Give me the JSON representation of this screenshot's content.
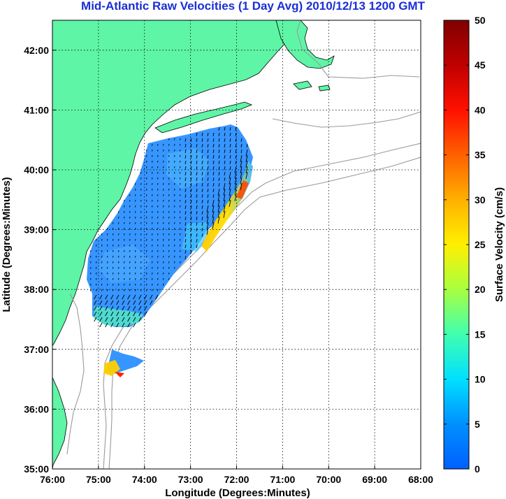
{
  "title": "Mid-Atlantic Raw Velocities (1 Day Avg) 2010/12/13 1200 GMT",
  "map": {
    "xlabel": "Longitude (Degrees:Minutes)",
    "ylabel": "Latitude (Degrees:Minutes)",
    "lon_range": [
      -76,
      -68
    ],
    "lat_range": [
      35,
      42.5
    ],
    "x_ticks": [
      "76:00",
      "75:00",
      "74:00",
      "73:00",
      "72:00",
      "71:00",
      "70:00",
      "69:00",
      "68:00"
    ],
    "y_ticks": [
      "35:00",
      "36:00",
      "37:00",
      "38:00",
      "39:00",
      "40:00",
      "41:00",
      "42:00"
    ],
    "grid": true,
    "land_color": "#5ef5a6",
    "contour_color": "#9a9a9a"
  },
  "colorbar": {
    "label": "Surface Velocity (cm/s)",
    "min": 0,
    "max": 50,
    "ticks": [
      "0",
      "5",
      "10",
      "15",
      "20",
      "25",
      "30",
      "35",
      "40",
      "45",
      "50"
    ],
    "colors": [
      "#0063ff",
      "#00b8ff",
      "#00ffe8",
      "#5cff9a",
      "#c8ff30",
      "#ffe100",
      "#ff9e00",
      "#ff4000",
      "#e60000",
      "#8c0000"
    ]
  }
}
